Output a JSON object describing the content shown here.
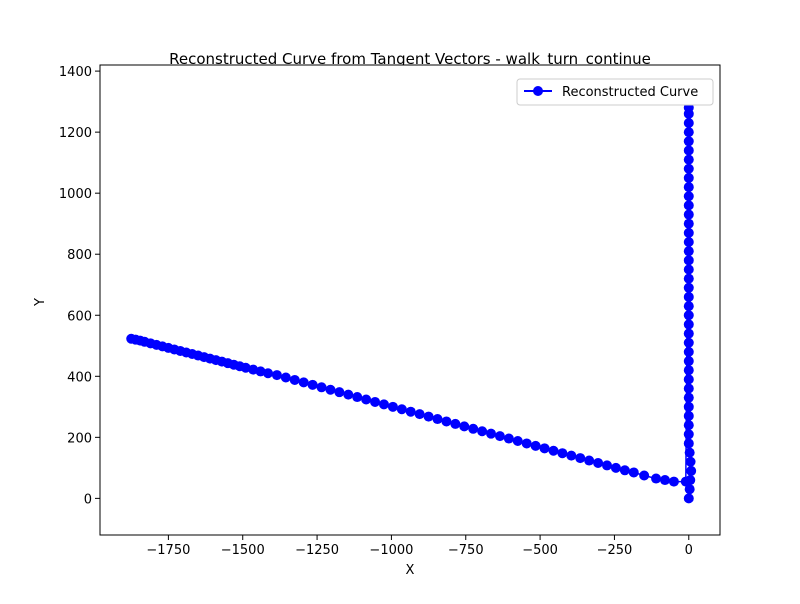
{
  "chart_data": {
    "type": "line",
    "title": "Reconstructed Curve from Tangent Vectors - walk_turn_continue",
    "xlabel": "X",
    "ylabel": "Y",
    "xlim": [
      -1980,
      105
    ],
    "ylim": [
      -120,
      1420
    ],
    "xticks": [
      -1750,
      -1500,
      -1250,
      -1000,
      -750,
      -500,
      -250,
      0
    ],
    "yticks": [
      0,
      200,
      400,
      600,
      800,
      1000,
      1200,
      1400
    ],
    "grid": false,
    "legend": {
      "placement": "top-right"
    },
    "series": [
      {
        "name": "Reconstructed Curve",
        "color": "#0000ff",
        "marker": "circle",
        "points": [
          [
            0,
            0
          ],
          [
            3,
            30
          ],
          [
            5,
            60
          ],
          [
            8,
            90
          ],
          [
            6,
            120
          ],
          [
            3,
            150
          ],
          [
            0,
            180
          ],
          [
            0,
            210
          ],
          [
            0,
            240
          ],
          [
            0,
            270
          ],
          [
            0,
            300
          ],
          [
            0,
            330
          ],
          [
            0,
            360
          ],
          [
            0,
            390
          ],
          [
            0,
            420
          ],
          [
            0,
            450
          ],
          [
            0,
            480
          ],
          [
            0,
            510
          ],
          [
            0,
            540
          ],
          [
            0,
            570
          ],
          [
            0,
            600
          ],
          [
            0,
            630
          ],
          [
            0,
            660
          ],
          [
            0,
            690
          ],
          [
            0,
            720
          ],
          [
            0,
            750
          ],
          [
            0,
            780
          ],
          [
            0,
            810
          ],
          [
            0,
            840
          ],
          [
            0,
            870
          ],
          [
            0,
            900
          ],
          [
            0,
            930
          ],
          [
            0,
            960
          ],
          [
            0,
            990
          ],
          [
            0,
            1020
          ],
          [
            0,
            1050
          ],
          [
            0,
            1080
          ],
          [
            0,
            1110
          ],
          [
            0,
            1140
          ],
          [
            0,
            1170
          ],
          [
            0,
            1200
          ],
          [
            0,
            1230
          ],
          [
            0,
            1260
          ],
          [
            0,
            1280
          ],
          [
            0,
            1300
          ],
          [
            0,
            1300
          ],
          [
            -10,
            55
          ],
          [
            -50,
            55
          ],
          [
            -80,
            60
          ],
          [
            -110,
            65
          ],
          [
            -150,
            75
          ],
          [
            -185,
            85
          ],
          [
            -215,
            92
          ],
          [
            -245,
            100
          ],
          [
            -275,
            108
          ],
          [
            -305,
            116
          ],
          [
            -335,
            124
          ],
          [
            -365,
            132
          ],
          [
            -395,
            140
          ],
          [
            -425,
            148
          ],
          [
            -455,
            156
          ],
          [
            -485,
            164
          ],
          [
            -515,
            172
          ],
          [
            -545,
            180
          ],
          [
            -575,
            188
          ],
          [
            -605,
            196
          ],
          [
            -635,
            204
          ],
          [
            -665,
            212
          ],
          [
            -695,
            220
          ],
          [
            -725,
            228
          ],
          [
            -755,
            236
          ],
          [
            -785,
            244
          ],
          [
            -815,
            252
          ],
          [
            -845,
            260
          ],
          [
            -875,
            268
          ],
          [
            -905,
            276
          ],
          [
            -935,
            284
          ],
          [
            -965,
            292
          ],
          [
            -995,
            300
          ],
          [
            -1025,
            308
          ],
          [
            -1055,
            316
          ],
          [
            -1085,
            324
          ],
          [
            -1115,
            332
          ],
          [
            -1145,
            340
          ],
          [
            -1175,
            348
          ],
          [
            -1205,
            356
          ],
          [
            -1235,
            364
          ],
          [
            -1265,
            372
          ],
          [
            -1295,
            380
          ],
          [
            -1325,
            388
          ],
          [
            -1355,
            396
          ],
          [
            -1385,
            404
          ],
          [
            -1415,
            410
          ],
          [
            -1440,
            416
          ],
          [
            -1465,
            422
          ],
          [
            -1490,
            428
          ],
          [
            -1510,
            433
          ],
          [
            -1530,
            438
          ],
          [
            -1550,
            443
          ],
          [
            -1570,
            448
          ],
          [
            -1590,
            453
          ],
          [
            -1610,
            458
          ],
          [
            -1630,
            463
          ],
          [
            -1650,
            468
          ],
          [
            -1670,
            473
          ],
          [
            -1690,
            478
          ],
          [
            -1710,
            483
          ],
          [
            -1730,
            488
          ],
          [
            -1750,
            493
          ],
          [
            -1770,
            498
          ],
          [
            -1790,
            503
          ],
          [
            -1810,
            508
          ],
          [
            -1830,
            513
          ],
          [
            -1845,
            517
          ],
          [
            -1860,
            520
          ],
          [
            -1875,
            523
          ]
        ]
      }
    ]
  }
}
